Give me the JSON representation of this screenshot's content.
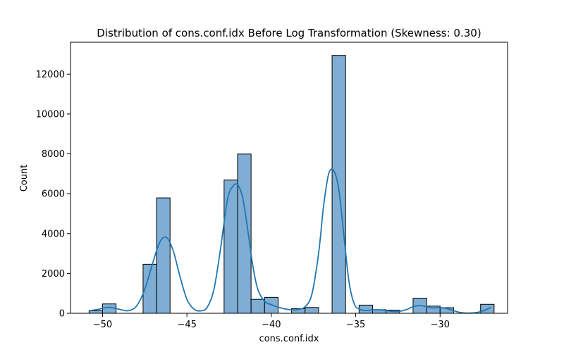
{
  "chart_data": {
    "type": "bar",
    "title": "Distribution of cons.conf.idx Before Log Transformation (Skewness: 0.30)",
    "xlabel": "cons.conf.idx",
    "ylabel": "Count",
    "xlim": [
      -51.9,
      -26.0
    ],
    "ylim": [
      0,
      13600
    ],
    "xticks": [
      -50,
      -45,
      -40,
      -35,
      -30
    ],
    "xtick_labels": [
      "−50",
      "−45",
      "−40",
      "−35",
      "−30"
    ],
    "yticks": [
      0,
      2000,
      4000,
      6000,
      8000,
      10000,
      12000
    ],
    "ytick_labels": [
      "0",
      "2000",
      "4000",
      "6000",
      "8000",
      "10000",
      "12000"
    ],
    "grid": false,
    "bar_color": "#7fadd3",
    "bar_edge_color": "#000000",
    "kde_color": "#1f77b4",
    "bins": [
      {
        "x0": -50.8,
        "x1": -50.0,
        "count": 128
      },
      {
        "x0": -50.0,
        "x1": -49.2,
        "count": 470
      },
      {
        "x0": -49.2,
        "x1": -48.4,
        "count": 0
      },
      {
        "x0": -48.4,
        "x1": -47.6,
        "count": 0
      },
      {
        "x0": -47.6,
        "x1": -46.8,
        "count": 2460
      },
      {
        "x0": -46.8,
        "x1": -46.0,
        "count": 5790
      },
      {
        "x0": -46.0,
        "x1": -45.2,
        "count": 0
      },
      {
        "x0": -45.2,
        "x1": -44.4,
        "count": 0
      },
      {
        "x0": -44.4,
        "x1": -43.6,
        "count": 0
      },
      {
        "x0": -43.6,
        "x1": -42.8,
        "count": 0
      },
      {
        "x0": -42.8,
        "x1": -42.0,
        "count": 6685
      },
      {
        "x0": -42.0,
        "x1": -41.2,
        "count": 7990
      },
      {
        "x0": -41.2,
        "x1": -40.4,
        "count": 700
      },
      {
        "x0": -40.4,
        "x1": -39.6,
        "count": 800
      },
      {
        "x0": -39.6,
        "x1": -38.8,
        "count": 0
      },
      {
        "x0": -38.8,
        "x1": -38.0,
        "count": 230
      },
      {
        "x0": -38.0,
        "x1": -37.2,
        "count": 290
      },
      {
        "x0": -37.2,
        "x1": -36.4,
        "count": 0
      },
      {
        "x0": -36.4,
        "x1": -35.6,
        "count": 12940
      },
      {
        "x0": -35.6,
        "x1": -34.8,
        "count": 0
      },
      {
        "x0": -34.8,
        "x1": -34.0,
        "count": 410
      },
      {
        "x0": -34.0,
        "x1": -33.2,
        "count": 180
      },
      {
        "x0": -33.2,
        "x1": -32.4,
        "count": 160
      },
      {
        "x0": -32.4,
        "x1": -31.6,
        "count": 0
      },
      {
        "x0": -31.6,
        "x1": -30.8,
        "count": 760
      },
      {
        "x0": -30.8,
        "x1": -30.0,
        "count": 360
      },
      {
        "x0": -30.0,
        "x1": -29.2,
        "count": 280
      },
      {
        "x0": -29.2,
        "x1": -28.4,
        "count": 0
      },
      {
        "x0": -28.4,
        "x1": -27.6,
        "count": 0
      },
      {
        "x0": -27.6,
        "x1": -26.8,
        "count": 450
      }
    ],
    "kde": {
      "x": [
        -50.8,
        -50.3,
        -49.9,
        -49.5,
        -49.0,
        -48.5,
        -48.0,
        -47.5,
        -47.0,
        -46.6,
        -46.2,
        -45.8,
        -45.4,
        -45.0,
        -44.6,
        -44.2,
        -43.8,
        -43.4,
        -43.0,
        -42.6,
        -42.3,
        -42.0,
        -41.7,
        -41.4,
        -41.1,
        -40.8,
        -40.4,
        -40.0,
        -39.6,
        -39.2,
        -38.8,
        -38.4,
        -38.0,
        -37.6,
        -37.2,
        -36.9,
        -36.6,
        -36.3,
        -36.0,
        -35.7,
        -35.4,
        -35.1,
        -34.8,
        -34.4,
        -34.0,
        -33.6,
        -33.2,
        -32.8,
        -32.4,
        -32.0,
        -31.6,
        -31.2,
        -30.8,
        -30.4,
        -30.0,
        -29.6,
        -29.2,
        -28.8,
        -28.4,
        -28.0,
        -27.6,
        -27.3,
        -27.0
      ],
      "y": [
        130,
        190,
        270,
        290,
        200,
        130,
        350,
        1200,
        2600,
        3580,
        3800,
        3100,
        1800,
        700,
        220,
        120,
        300,
        1200,
        3300,
        5700,
        6350,
        6450,
        5800,
        4200,
        2400,
        1200,
        600,
        430,
        310,
        220,
        170,
        190,
        330,
        950,
        3000,
        5400,
        7000,
        7150,
        6200,
        3900,
        1600,
        500,
        210,
        140,
        170,
        175,
        140,
        95,
        100,
        180,
        330,
        390,
        330,
        270,
        290,
        240,
        130,
        40,
        10,
        20,
        80,
        170,
        290
      ]
    }
  }
}
